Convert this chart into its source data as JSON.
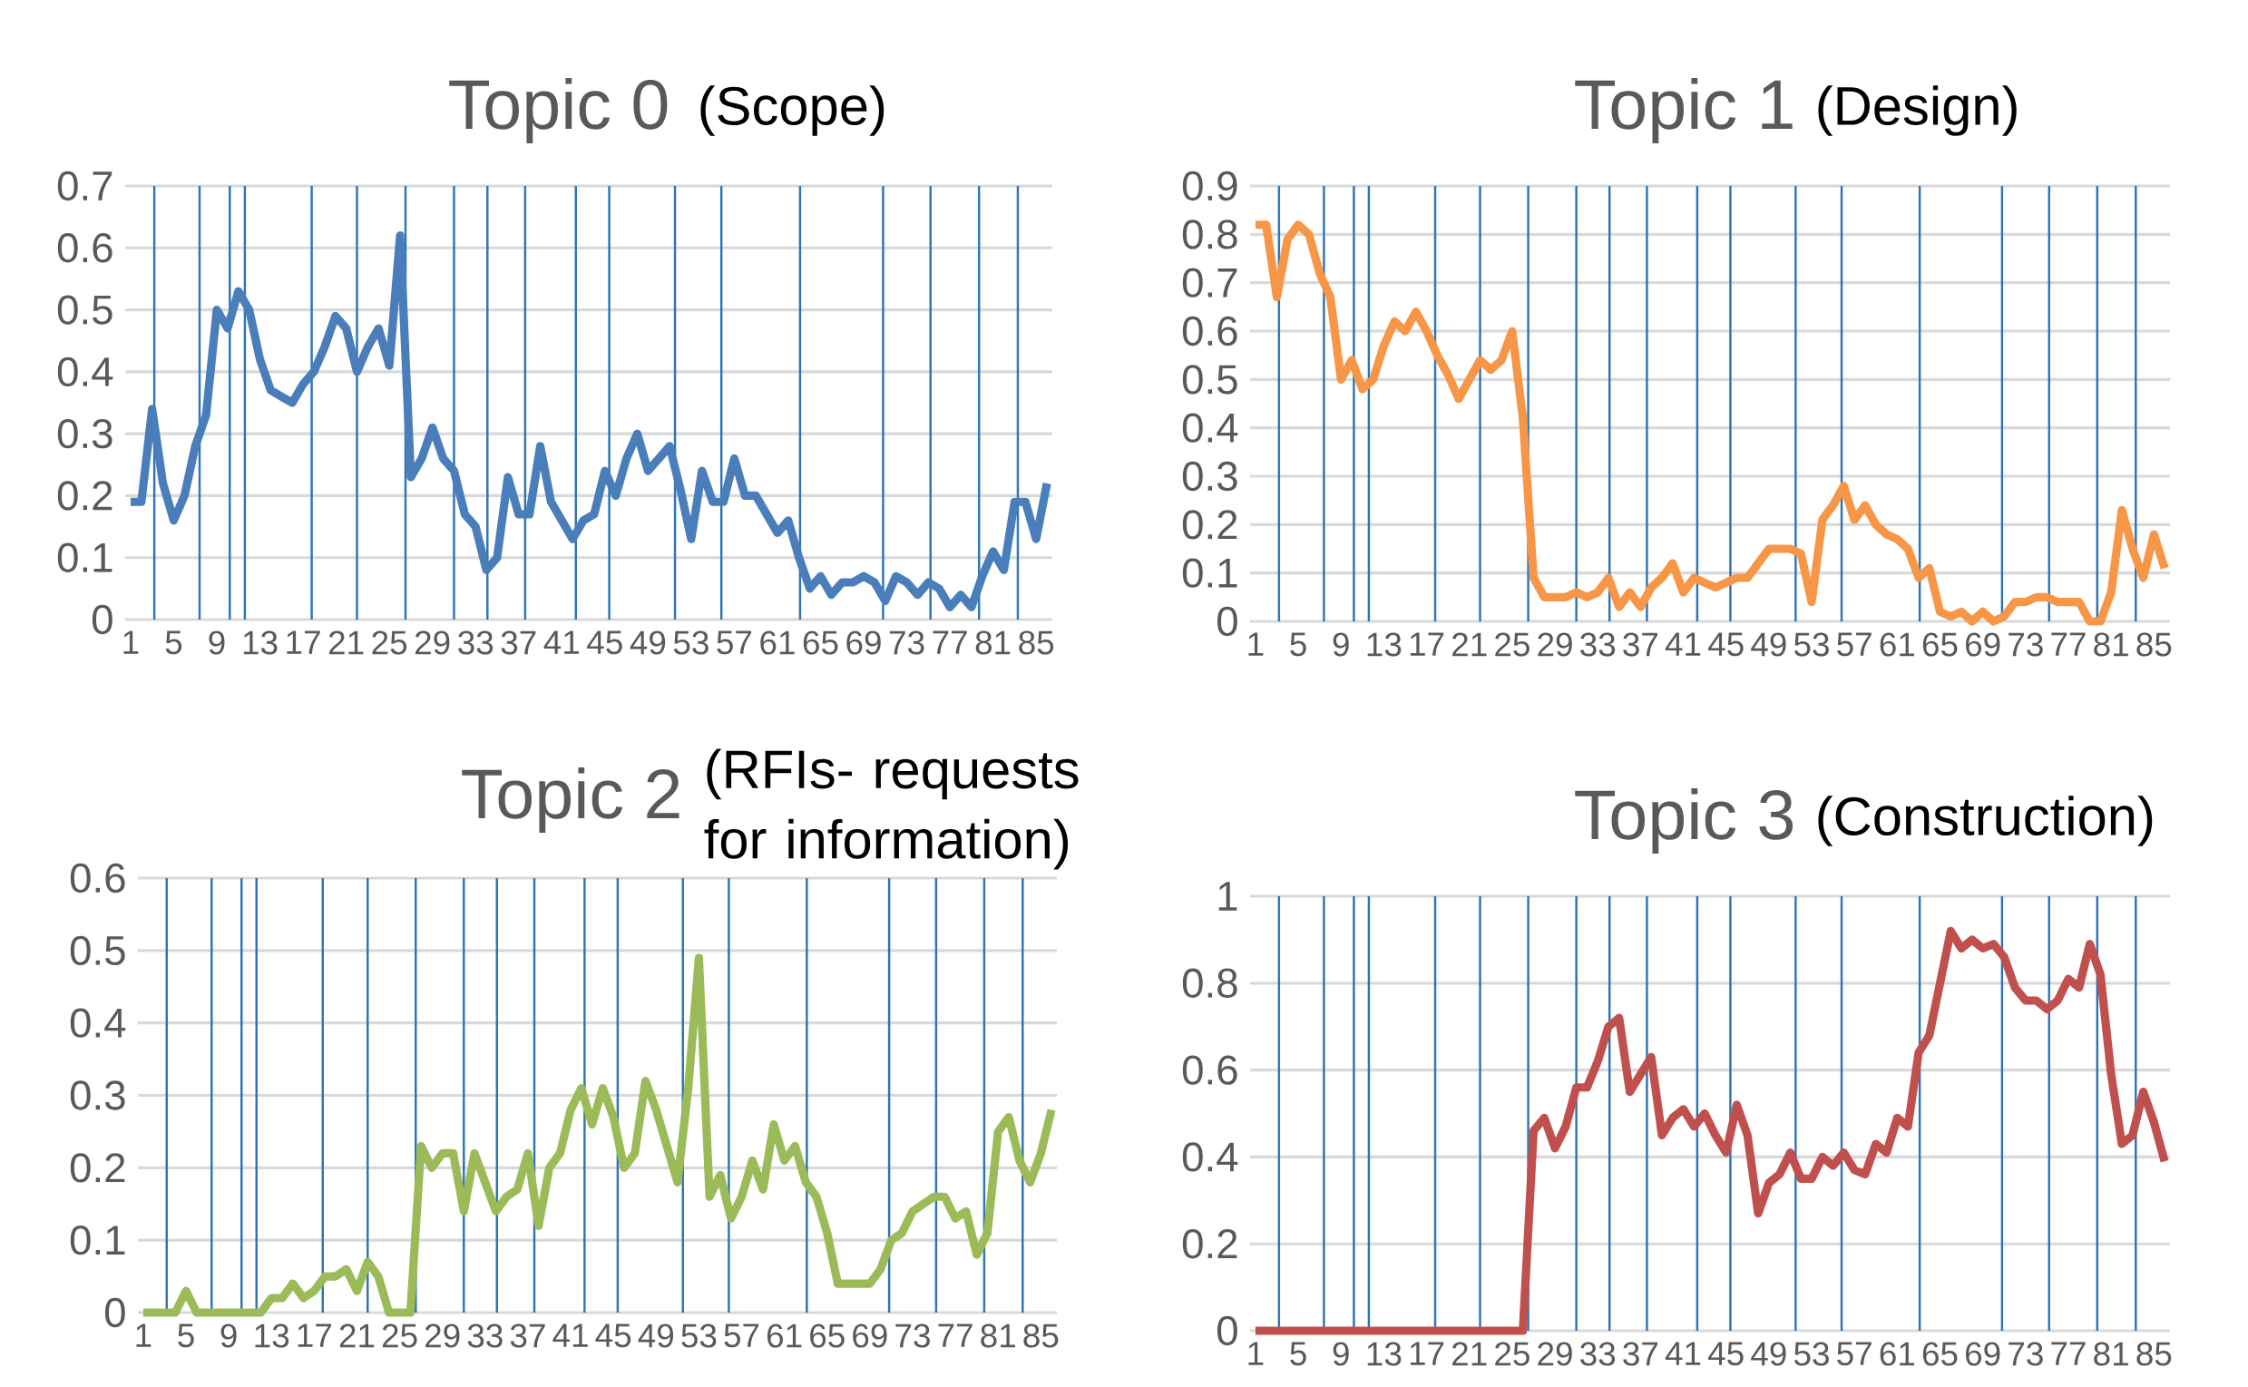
{
  "chart_data": [
    {
      "type": "line",
      "title": "Topic 0",
      "subtitle": "(Scope)",
      "x": [
        1,
        2,
        3,
        4,
        5,
        6,
        7,
        8,
        9,
        10,
        11,
        12,
        13,
        14,
        15,
        16,
        17,
        18,
        19,
        20,
        21,
        22,
        23,
        24,
        25,
        26,
        27,
        28,
        29,
        30,
        31,
        32,
        33,
        34,
        35,
        36,
        37,
        38,
        39,
        40,
        41,
        42,
        43,
        44,
        45,
        46,
        47,
        48,
        49,
        50,
        51,
        52,
        53,
        54,
        55,
        56,
        57,
        58,
        59,
        60,
        61,
        62,
        63,
        64,
        65,
        66,
        67,
        68,
        69,
        70,
        71,
        72,
        73,
        74,
        75,
        76,
        77,
        78,
        79,
        80,
        81,
        82,
        83,
        84,
        85,
        86
      ],
      "xlim": [
        0.5,
        86.5
      ],
      "xticks": [
        1,
        5,
        9,
        13,
        17,
        21,
        25,
        29,
        33,
        37,
        41,
        45,
        49,
        53,
        57,
        61,
        65,
        69,
        73,
        77,
        81,
        85
      ],
      "ylim": [
        0,
        0.7
      ],
      "yticks": [
        0,
        0.1,
        0.2,
        0.3,
        0.4,
        0.5,
        0.6,
        0.7
      ],
      "grid": "y",
      "marker": "none",
      "line_style": "solid",
      "series": [
        {
          "color": "#4a7ebb",
          "values": [
            0.19,
            0.19,
            0.34,
            0.22,
            0.16,
            0.2,
            0.28,
            0.33,
            0.5,
            0.47,
            0.53,
            0.5,
            0.42,
            0.37,
            0.36,
            0.35,
            0.38,
            0.4,
            0.44,
            0.49,
            0.47,
            0.4,
            0.44,
            0.47,
            0.41,
            0.62,
            0.23,
            0.26,
            0.31,
            0.26,
            0.24,
            0.17,
            0.15,
            0.08,
            0.1,
            0.23,
            0.17,
            0.17,
            0.28,
            0.19,
            0.16,
            0.13,
            0.16,
            0.17,
            0.24,
            0.2,
            0.26,
            0.3,
            0.24,
            0.26,
            0.28,
            0.21,
            0.13,
            0.24,
            0.19,
            0.19,
            0.26,
            0.2,
            0.2,
            0.17,
            0.14,
            0.16,
            0.1,
            0.05,
            0.07,
            0.04,
            0.06,
            0.06,
            0.07,
            0.06,
            0.03,
            0.07,
            0.06,
            0.04,
            0.06,
            0.05,
            0.02,
            0.04,
            0.02,
            0.07,
            0.11,
            0.08,
            0.19,
            0.19,
            0.13,
            0.22
          ]
        }
      ],
      "ref_lines": [
        {
          "axis": "x",
          "value": 3.2,
          "color": "#2e75b6"
        },
        {
          "axis": "x",
          "value": 7.4,
          "color": "#2e75b6"
        },
        {
          "axis": "x",
          "value": 10.2,
          "color": "#2e75b6"
        },
        {
          "axis": "x",
          "value": 11.6,
          "color": "#2e75b6"
        },
        {
          "axis": "x",
          "value": 17.8,
          "color": "#2e75b6"
        },
        {
          "axis": "x",
          "value": 22,
          "color": "#2e75b6"
        },
        {
          "axis": "x",
          "value": 26.5,
          "color": "#2e75b6"
        },
        {
          "axis": "x",
          "value": 31,
          "color": "#2e75b6"
        },
        {
          "axis": "x",
          "value": 34.1,
          "color": "#2e75b6"
        },
        {
          "axis": "x",
          "value": 37.6,
          "color": "#2e75b6"
        },
        {
          "axis": "x",
          "value": 42.3,
          "color": "#2e75b6"
        },
        {
          "axis": "x",
          "value": 45.4,
          "color": "#2e75b6"
        },
        {
          "axis": "x",
          "value": 51.5,
          "color": "#2e75b6"
        },
        {
          "axis": "x",
          "value": 55.8,
          "color": "#2e75b6"
        },
        {
          "axis": "x",
          "value": 63.1,
          "color": "#2e75b6"
        },
        {
          "axis": "x",
          "value": 70.8,
          "color": "#2e75b6"
        },
        {
          "axis": "x",
          "value": 75.2,
          "color": "#2e75b6"
        },
        {
          "axis": "x",
          "value": 79.7,
          "color": "#2e75b6"
        },
        {
          "axis": "x",
          "value": 83.3,
          "color": "#2e75b6"
        }
      ]
    },
    {
      "type": "line",
      "title": "Topic 1",
      "subtitle": "(Design)",
      "x": [
        1,
        2,
        3,
        4,
        5,
        6,
        7,
        8,
        9,
        10,
        11,
        12,
        13,
        14,
        15,
        16,
        17,
        18,
        19,
        20,
        21,
        22,
        23,
        24,
        25,
        26,
        27,
        28,
        29,
        30,
        31,
        32,
        33,
        34,
        35,
        36,
        37,
        38,
        39,
        40,
        41,
        42,
        43,
        44,
        45,
        46,
        47,
        48,
        49,
        50,
        51,
        52,
        53,
        54,
        55,
        56,
        57,
        58,
        59,
        60,
        61,
        62,
        63,
        64,
        65,
        66,
        67,
        68,
        69,
        70,
        71,
        72,
        73,
        74,
        75,
        76,
        77,
        78,
        79,
        80,
        81,
        82,
        83,
        84,
        85,
        86
      ],
      "xlim": [
        0.5,
        86.5
      ],
      "xticks": [
        1,
        5,
        9,
        13,
        17,
        21,
        25,
        29,
        33,
        37,
        41,
        45,
        49,
        53,
        57,
        61,
        65,
        69,
        73,
        77,
        81,
        85
      ],
      "ylim": [
        0,
        0.9
      ],
      "yticks": [
        0,
        0.1,
        0.2,
        0.3,
        0.4,
        0.5,
        0.6,
        0.7,
        0.8,
        0.9
      ],
      "grid": "y",
      "marker": "none",
      "line_style": "solid",
      "series": [
        {
          "color": "#f79646",
          "values": [
            0.82,
            0.82,
            0.67,
            0.79,
            0.82,
            0.8,
            0.72,
            0.67,
            0.5,
            0.54,
            0.48,
            0.5,
            0.57,
            0.62,
            0.6,
            0.64,
            0.6,
            0.55,
            0.51,
            0.46,
            0.5,
            0.54,
            0.52,
            0.54,
            0.6,
            0.42,
            0.09,
            0.05,
            0.05,
            0.05,
            0.06,
            0.05,
            0.06,
            0.09,
            0.03,
            0.06,
            0.03,
            0.07,
            0.09,
            0.12,
            0.06,
            0.09,
            0.08,
            0.07,
            0.08,
            0.09,
            0.09,
            0.12,
            0.15,
            0.15,
            0.15,
            0.14,
            0.04,
            0.21,
            0.24,
            0.28,
            0.21,
            0.24,
            0.2,
            0.18,
            0.17,
            0.15,
            0.09,
            0.11,
            0.02,
            0.01,
            0.02,
            0,
            0.02,
            0,
            0.01,
            0.04,
            0.04,
            0.05,
            0.05,
            0.04,
            0.04,
            0.04,
            0,
            0,
            0.06,
            0.23,
            0.15,
            0.09,
            0.18,
            0.11
          ]
        }
      ],
      "ref_lines": [
        {
          "axis": "x",
          "value": 3.2,
          "color": "#2e75b6"
        },
        {
          "axis": "x",
          "value": 7.4,
          "color": "#2e75b6"
        },
        {
          "axis": "x",
          "value": 10.2,
          "color": "#2e75b6"
        },
        {
          "axis": "x",
          "value": 11.6,
          "color": "#2e75b6"
        },
        {
          "axis": "x",
          "value": 17.8,
          "color": "#2e75b6"
        },
        {
          "axis": "x",
          "value": 22,
          "color": "#2e75b6"
        },
        {
          "axis": "x",
          "value": 26.5,
          "color": "#2e75b6"
        },
        {
          "axis": "x",
          "value": 31,
          "color": "#2e75b6"
        },
        {
          "axis": "x",
          "value": 34.1,
          "color": "#2e75b6"
        },
        {
          "axis": "x",
          "value": 37.6,
          "color": "#2e75b6"
        },
        {
          "axis": "x",
          "value": 42.3,
          "color": "#2e75b6"
        },
        {
          "axis": "x",
          "value": 45.4,
          "color": "#2e75b6"
        },
        {
          "axis": "x",
          "value": 51.5,
          "color": "#2e75b6"
        },
        {
          "axis": "x",
          "value": 55.8,
          "color": "#2e75b6"
        },
        {
          "axis": "x",
          "value": 63.1,
          "color": "#2e75b6"
        },
        {
          "axis": "x",
          "value": 70.8,
          "color": "#2e75b6"
        },
        {
          "axis": "x",
          "value": 75.2,
          "color": "#2e75b6"
        },
        {
          "axis": "x",
          "value": 79.7,
          "color": "#2e75b6"
        },
        {
          "axis": "x",
          "value": 83.3,
          "color": "#2e75b6"
        }
      ]
    },
    {
      "type": "line",
      "title": "Topic 2",
      "subtitle": "(RFIs- requests for information)",
      "x": [
        1,
        2,
        3,
        4,
        5,
        6,
        7,
        8,
        9,
        10,
        11,
        12,
        13,
        14,
        15,
        16,
        17,
        18,
        19,
        20,
        21,
        22,
        23,
        24,
        25,
        26,
        27,
        28,
        29,
        30,
        31,
        32,
        33,
        34,
        35,
        36,
        37,
        38,
        39,
        40,
        41,
        42,
        43,
        44,
        45,
        46,
        47,
        48,
        49,
        50,
        51,
        52,
        53,
        54,
        55,
        56,
        57,
        58,
        59,
        60,
        61,
        62,
        63,
        64,
        65,
        66,
        67,
        68,
        69,
        70,
        71,
        72,
        73,
        74,
        75,
        76,
        77,
        78,
        79,
        80,
        81,
        82,
        83,
        84,
        85,
        86
      ],
      "xlim": [
        0.5,
        86.5
      ],
      "xticks": [
        1,
        5,
        9,
        13,
        17,
        21,
        25,
        29,
        33,
        37,
        41,
        45,
        49,
        53,
        57,
        61,
        65,
        69,
        73,
        77,
        81,
        85
      ],
      "ylim": [
        0,
        0.6
      ],
      "yticks": [
        0,
        0.1,
        0.2,
        0.3,
        0.4,
        0.5,
        0.6
      ],
      "grid": "y",
      "marker": "none",
      "line_style": "solid",
      "series": [
        {
          "color": "#9bbb59",
          "values": [
            0,
            0,
            0,
            0,
            0.03,
            0,
            0,
            0,
            0,
            0,
            0,
            0,
            0.02,
            0.02,
            0.04,
            0.02,
            0.03,
            0.05,
            0.05,
            0.06,
            0.03,
            0.07,
            0.05,
            0,
            0,
            0,
            0.23,
            0.2,
            0.22,
            0.22,
            0.14,
            0.22,
            0.18,
            0.14,
            0.16,
            0.17,
            0.22,
            0.12,
            0.2,
            0.22,
            0.28,
            0.31,
            0.26,
            0.31,
            0.27,
            0.2,
            0.22,
            0.32,
            0.28,
            0.23,
            0.18,
            0.31,
            0.49,
            0.16,
            0.19,
            0.13,
            0.16,
            0.21,
            0.17,
            0.26,
            0.21,
            0.23,
            0.18,
            0.16,
            0.11,
            0.04,
            0.04,
            0.04,
            0.04,
            0.06,
            0.1,
            0.11,
            0.14,
            0.15,
            0.16,
            0.16,
            0.13,
            0.14,
            0.08,
            0.11,
            0.25,
            0.27,
            0.21,
            0.18,
            0.22,
            0.28
          ]
        }
      ],
      "ref_lines": [
        {
          "axis": "x",
          "value": 3.2,
          "color": "#2e75b6"
        },
        {
          "axis": "x",
          "value": 7.4,
          "color": "#2e75b6"
        },
        {
          "axis": "x",
          "value": 10.2,
          "color": "#2e75b6"
        },
        {
          "axis": "x",
          "value": 11.6,
          "color": "#2e75b6"
        },
        {
          "axis": "x",
          "value": 17.8,
          "color": "#2e75b6"
        },
        {
          "axis": "x",
          "value": 22,
          "color": "#2e75b6"
        },
        {
          "axis": "x",
          "value": 26.5,
          "color": "#2e75b6"
        },
        {
          "axis": "x",
          "value": 31,
          "color": "#2e75b6"
        },
        {
          "axis": "x",
          "value": 34.1,
          "color": "#2e75b6"
        },
        {
          "axis": "x",
          "value": 37.6,
          "color": "#2e75b6"
        },
        {
          "axis": "x",
          "value": 42.3,
          "color": "#2e75b6"
        },
        {
          "axis": "x",
          "value": 45.4,
          "color": "#2e75b6"
        },
        {
          "axis": "x",
          "value": 51.5,
          "color": "#2e75b6"
        },
        {
          "axis": "x",
          "value": 55.8,
          "color": "#2e75b6"
        },
        {
          "axis": "x",
          "value": 63.1,
          "color": "#2e75b6"
        },
        {
          "axis": "x",
          "value": 70.8,
          "color": "#2e75b6"
        },
        {
          "axis": "x",
          "value": 75.2,
          "color": "#2e75b6"
        },
        {
          "axis": "x",
          "value": 79.7,
          "color": "#2e75b6"
        },
        {
          "axis": "x",
          "value": 83.3,
          "color": "#2e75b6"
        }
      ]
    },
    {
      "type": "line",
      "title": "Topic 3",
      "subtitle": "(Construction)",
      "x": [
        1,
        2,
        3,
        4,
        5,
        6,
        7,
        8,
        9,
        10,
        11,
        12,
        13,
        14,
        15,
        16,
        17,
        18,
        19,
        20,
        21,
        22,
        23,
        24,
        25,
        26,
        27,
        28,
        29,
        30,
        31,
        32,
        33,
        34,
        35,
        36,
        37,
        38,
        39,
        40,
        41,
        42,
        43,
        44,
        45,
        46,
        47,
        48,
        49,
        50,
        51,
        52,
        53,
        54,
        55,
        56,
        57,
        58,
        59,
        60,
        61,
        62,
        63,
        64,
        65,
        66,
        67,
        68,
        69,
        70,
        71,
        72,
        73,
        74,
        75,
        76,
        77,
        78,
        79,
        80,
        81,
        82,
        83,
        84,
        85,
        86
      ],
      "xlim": [
        0.5,
        86.5
      ],
      "xticks": [
        1,
        5,
        9,
        13,
        17,
        21,
        25,
        29,
        33,
        37,
        41,
        45,
        49,
        53,
        57,
        61,
        65,
        69,
        73,
        77,
        81,
        85
      ],
      "ylim": [
        0,
        1
      ],
      "yticks": [
        0,
        0.2,
        0.4,
        0.6,
        0.8,
        1
      ],
      "grid": "y",
      "marker": "none",
      "line_style": "solid",
      "series": [
        {
          "color": "#c0504d",
          "values": [
            0,
            0,
            0,
            0,
            0,
            0,
            0,
            0,
            0,
            0,
            0,
            0,
            0,
            0,
            0,
            0,
            0,
            0,
            0,
            0,
            0,
            0,
            0,
            0,
            0,
            0,
            0.46,
            0.49,
            0.42,
            0.47,
            0.56,
            0.56,
            0.62,
            0.7,
            0.72,
            0.55,
            0.59,
            0.63,
            0.45,
            0.49,
            0.51,
            0.47,
            0.5,
            0.45,
            0.41,
            0.52,
            0.45,
            0.27,
            0.34,
            0.36,
            0.41,
            0.35,
            0.35,
            0.4,
            0.38,
            0.41,
            0.37,
            0.36,
            0.43,
            0.41,
            0.49,
            0.47,
            0.64,
            0.68,
            0.8,
            0.92,
            0.88,
            0.9,
            0.88,
            0.89,
            0.86,
            0.79,
            0.76,
            0.76,
            0.74,
            0.76,
            0.81,
            0.79,
            0.89,
            0.82,
            0.59,
            0.43,
            0.45,
            0.55,
            0.48,
            0.39
          ]
        }
      ],
      "ref_lines": [
        {
          "axis": "x",
          "value": 3.2,
          "color": "#2e75b6"
        },
        {
          "axis": "x",
          "value": 7.4,
          "color": "#2e75b6"
        },
        {
          "axis": "x",
          "value": 10.2,
          "color": "#2e75b6"
        },
        {
          "axis": "x",
          "value": 11.6,
          "color": "#2e75b6"
        },
        {
          "axis": "x",
          "value": 17.8,
          "color": "#2e75b6"
        },
        {
          "axis": "x",
          "value": 22,
          "color": "#2e75b6"
        },
        {
          "axis": "x",
          "value": 26.5,
          "color": "#2e75b6"
        },
        {
          "axis": "x",
          "value": 31,
          "color": "#2e75b6"
        },
        {
          "axis": "x",
          "value": 34.1,
          "color": "#2e75b6"
        },
        {
          "axis": "x",
          "value": 37.6,
          "color": "#2e75b6"
        },
        {
          "axis": "x",
          "value": 42.3,
          "color": "#2e75b6"
        },
        {
          "axis": "x",
          "value": 45.4,
          "color": "#2e75b6"
        },
        {
          "axis": "x",
          "value": 51.5,
          "color": "#2e75b6"
        },
        {
          "axis": "x",
          "value": 55.8,
          "color": "#2e75b6"
        },
        {
          "axis": "x",
          "value": 63.1,
          "color": "#2e75b6"
        },
        {
          "axis": "x",
          "value": 70.8,
          "color": "#2e75b6"
        },
        {
          "axis": "x",
          "value": 75.2,
          "color": "#2e75b6"
        },
        {
          "axis": "x",
          "value": 79.7,
          "color": "#2e75b6"
        },
        {
          "axis": "x",
          "value": 83.3,
          "color": "#2e75b6"
        }
      ]
    }
  ]
}
